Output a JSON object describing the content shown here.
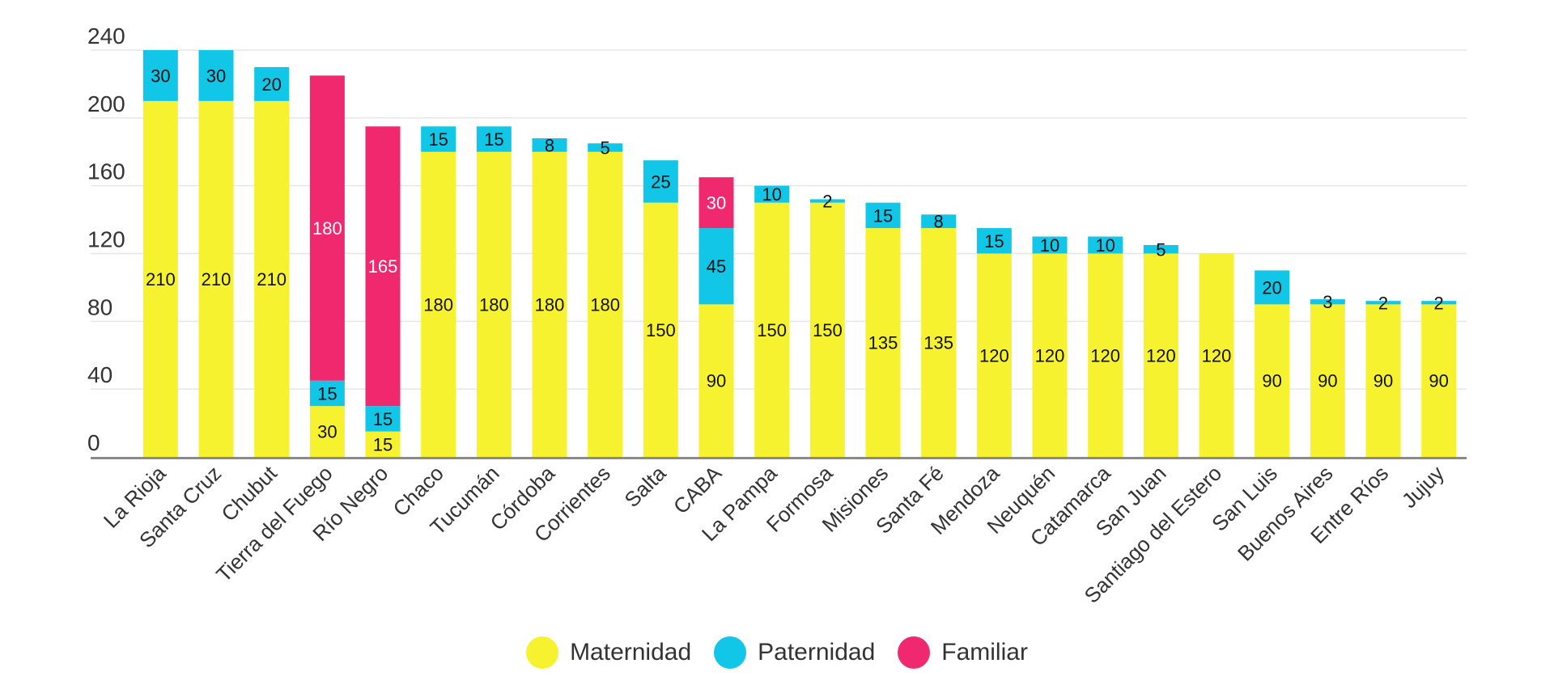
{
  "chart_data": {
    "type": "bar",
    "stacked": true,
    "title": "",
    "xlabel": "",
    "ylabel": "",
    "ylim": [
      0,
      240
    ],
    "yticks": [
      0,
      40,
      80,
      120,
      160,
      200,
      240
    ],
    "grid": true,
    "legend_position": "bottom",
    "categories": [
      "La Rioja",
      "Santa Cruz",
      "Chubut",
      "Tierra del Fuego",
      "Río Negro",
      "Chaco",
      "Tucumán",
      "Córdoba",
      "Corrientes",
      "Salta",
      "CABA",
      "La Pampa",
      "Formosa",
      "Misiones",
      "Santa Fé",
      "Mendoza",
      "Neuquén",
      "Catamarca",
      "San Juan",
      "Santiago del Estero",
      "San Luis",
      "Buenos Aires",
      "Entre Ríos",
      "Jujuy"
    ],
    "series": [
      {
        "name": "Maternidad",
        "color": "#F7F22F",
        "values": [
          210,
          210,
          210,
          30,
          15,
          180,
          180,
          180,
          180,
          150,
          90,
          150,
          150,
          135,
          135,
          120,
          120,
          120,
          120,
          120,
          90,
          90,
          90,
          90
        ]
      },
      {
        "name": "Paternidad",
        "color": "#12C6E8",
        "values": [
          30,
          30,
          20,
          15,
          15,
          15,
          15,
          8,
          5,
          25,
          45,
          10,
          2,
          15,
          8,
          15,
          10,
          10,
          5,
          0,
          20,
          3,
          2,
          2
        ]
      },
      {
        "name": "Familiar",
        "color": "#F0296F",
        "values": [
          0,
          0,
          0,
          180,
          165,
          0,
          0,
          0,
          0,
          0,
          30,
          0,
          0,
          0,
          0,
          0,
          0,
          0,
          0,
          0,
          0,
          0,
          0,
          0
        ]
      }
    ]
  }
}
